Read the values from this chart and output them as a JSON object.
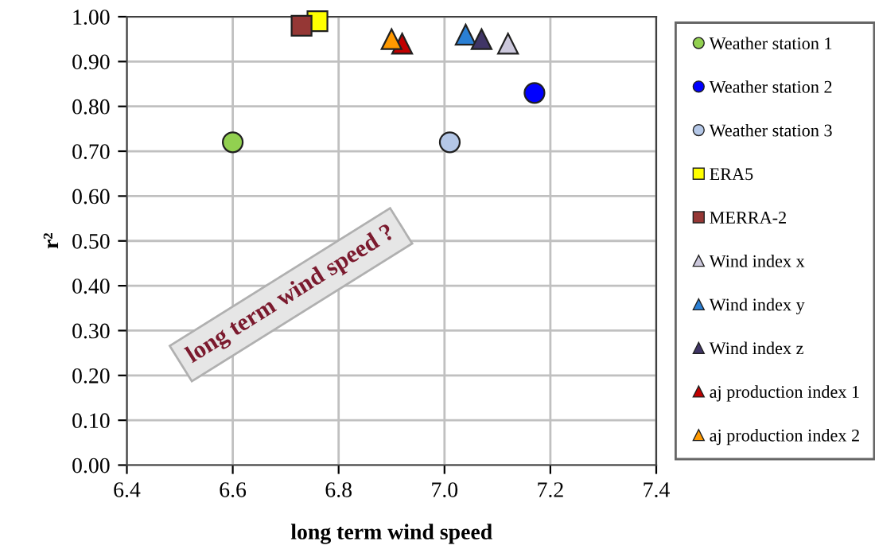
{
  "chart_data": {
    "type": "scatter",
    "xlabel": "long term wind speed",
    "ylabel": "r²",
    "xlim": [
      6.4,
      7.4
    ],
    "xticks": [
      {
        "value": 6.4,
        "label": "6.4"
      },
      {
        "value": 6.6,
        "label": "6.6"
      },
      {
        "value": 6.8,
        "label": "6.8"
      },
      {
        "value": 7.0,
        "label": "7.0"
      },
      {
        "value": 7.2,
        "label": "7.2"
      },
      {
        "value": 7.4,
        "label": "7.4"
      }
    ],
    "ylim": [
      0,
      1
    ],
    "yticks": [
      {
        "value": 0,
        "label": "0.00"
      },
      {
        "value": 0.1,
        "label": "0.10"
      },
      {
        "value": 0.2,
        "label": "0.20"
      },
      {
        "value": 0.3,
        "label": "0.30"
      },
      {
        "value": 0.4,
        "label": "0.40"
      },
      {
        "value": 0.5,
        "label": "0.50"
      },
      {
        "value": 0.6,
        "label": "0.60"
      },
      {
        "value": 0.7,
        "label": "0.70"
      },
      {
        "value": 0.8,
        "label": "0.80"
      },
      {
        "value": 0.9,
        "label": "0.90"
      },
      {
        "value": 1.0,
        "label": "1.00"
      }
    ],
    "grid": true,
    "legend": "right",
    "annotations": [
      "long term wind speed ?"
    ],
    "series": [
      {
        "name": "Weather station 1",
        "color": "#92d050",
        "marker": "circle",
        "x": [
          6.6
        ],
        "values": [
          0.72
        ]
      },
      {
        "name": "Weather station 2",
        "color": "#0000ff",
        "marker": "circle",
        "x": [
          7.17
        ],
        "values": [
          0.83
        ]
      },
      {
        "name": "Weather station 3",
        "color": "#b4c7e7",
        "marker": "circle",
        "x": [
          7.01
        ],
        "values": [
          0.72
        ]
      },
      {
        "name": "ERA5",
        "color": "#ffff00",
        "marker": "square",
        "x": [
          6.76
        ],
        "values": [
          0.99
        ]
      },
      {
        "name": "MERRA-2",
        "color": "#953735",
        "marker": "square",
        "x": [
          6.73
        ],
        "values": [
          0.98
        ]
      },
      {
        "name": "Wind index x",
        "color": "#ccc8dc",
        "marker": "triangle",
        "x": [
          7.12
        ],
        "values": [
          0.94
        ]
      },
      {
        "name": "Wind index y",
        "color": "#2a7fd4",
        "marker": "triangle",
        "x": [
          7.04
        ],
        "values": [
          0.96
        ]
      },
      {
        "name": "Wind index z",
        "color": "#403566",
        "marker": "triangle",
        "x": [
          7.07
        ],
        "values": [
          0.95
        ]
      },
      {
        "name": "aj production index 1",
        "color": "#c00000",
        "marker": "triangle",
        "x": [
          6.92
        ],
        "values": [
          0.94
        ]
      },
      {
        "name": "aj production index 2",
        "color": "#ff9900",
        "marker": "triangle",
        "x": [
          6.9
        ],
        "values": [
          0.95
        ]
      }
    ]
  }
}
